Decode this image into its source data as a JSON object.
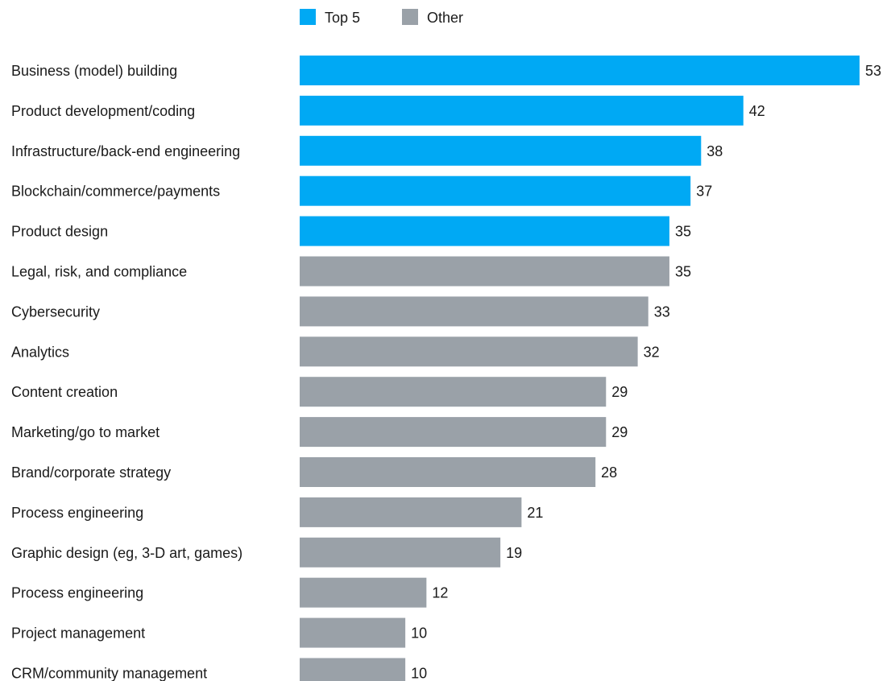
{
  "chart_data": {
    "type": "bar",
    "orientation": "horizontal",
    "categories": [
      "Business (model) building",
      "Product development/coding",
      "Infrastructure/back-end engineering",
      "Blockchain/commerce/payments",
      "Product design",
      "Legal, risk, and compliance",
      "Cybersecurity",
      "Analytics",
      "Content creation",
      "Marketing/go to market",
      "Brand/corporate strategy",
      "Process engineering",
      "Graphic design (eg, 3-D art, games)",
      "Process engineering",
      "Project management",
      "CRM/community management"
    ],
    "values": [
      53,
      42,
      38,
      37,
      35,
      35,
      33,
      32,
      29,
      29,
      28,
      21,
      19,
      12,
      10,
      10
    ],
    "groups": [
      "Top 5",
      "Top 5",
      "Top 5",
      "Top 5",
      "Top 5",
      "Other",
      "Other",
      "Other",
      "Other",
      "Other",
      "Other",
      "Other",
      "Other",
      "Other",
      "Other",
      "Other"
    ],
    "legend": [
      {
        "name": "Top 5",
        "color": "#00a9f4"
      },
      {
        "name": "Other",
        "color": "#9aa1a8"
      }
    ],
    "legend_position": "top-center",
    "xlim": [
      0,
      53
    ],
    "grid": false,
    "data_labels": true
  }
}
